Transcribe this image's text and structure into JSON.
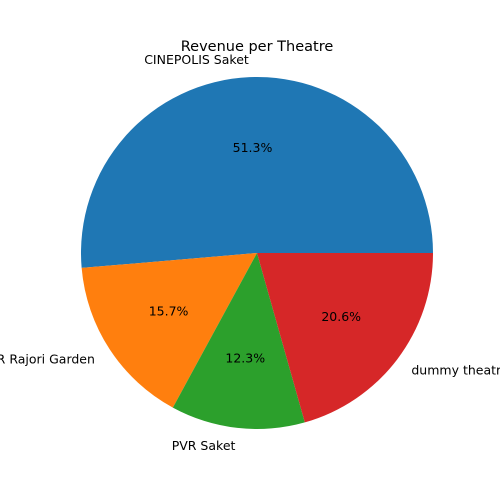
{
  "chart_data": {
    "type": "pie",
    "title": "Revenue per Theatre",
    "categories": [
      "CINEPOLIS Saket",
      "PVR Rajori Garden",
      "PVR Saket",
      "dummy theatre"
    ],
    "values": [
      51.3,
      15.7,
      12.3,
      20.6
    ],
    "percent_labels": [
      "51.3%",
      "15.7%",
      "12.3%",
      "20.6%"
    ],
    "colors": [
      "#1f77b4",
      "#ff7f0e",
      "#2ca02c",
      "#d62728"
    ],
    "start_angle_deg": 0,
    "direction": "counterclockwise",
    "legend": "none"
  }
}
